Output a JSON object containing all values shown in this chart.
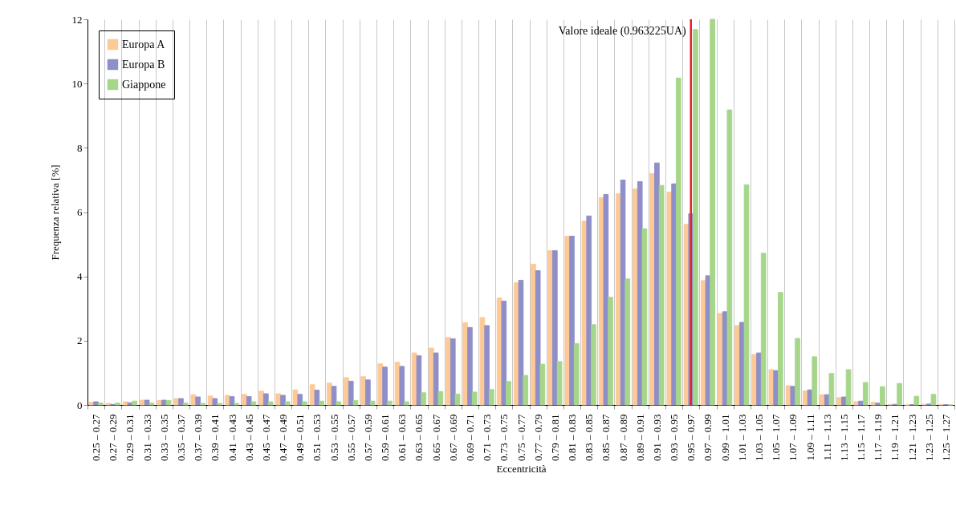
{
  "chart_data": {
    "type": "bar",
    "xlabel": "Eccentricità",
    "ylabel": "Frequenza relativa [%]",
    "categories": [
      "0.25 – 0.27",
      "0.27 – 0.29",
      "0.29 – 0.31",
      "0.31 – 0.33",
      "0.33 – 0.35",
      "0.35 – 0.37",
      "0.37 – 0.39",
      "0.39 – 0.41",
      "0.41 – 0.43",
      "0.43 – 0.45",
      "0.45 – 0.47",
      "0.47 – 0.49",
      "0.49 – 0.51",
      "0.51 – 0.53",
      "0.53 – 0.55",
      "0.55 – 0.57",
      "0.57 – 0.59",
      "0.59 – 0.61",
      "0.61 – 0.63",
      "0.63 – 0.65",
      "0.65 – 0.67",
      "0.67 – 0.69",
      "0.69 – 0.71",
      "0.71 – 0.73",
      "0.73 – 0.75",
      "0.75 – 0.77",
      "0.77 – 0.79",
      "0.79 – 0.81",
      "0.81 – 0.83",
      "0.83 – 0.85",
      "0.85 – 0.87",
      "0.87 – 0.89",
      "0.89 – 0.91",
      "0.91 – 0.93",
      "0.93 – 0.95",
      "0.95 – 0.97",
      "0.97 – 0.99",
      "0.99 – 1.01",
      "1.01 – 1.03",
      "1.03 – 1.05",
      "1.05 – 1.07",
      "1.07 – 1.09",
      "1.09 – 1.11",
      "1.11 – 1.13",
      "1.13 – 1.15",
      "1.15 – 1.17",
      "1.17 – 1.19",
      "1.19 – 1.21",
      "1.21 – 1.23",
      "1.23 – 1.25",
      "1.25 – 1.27"
    ],
    "series": [
      {
        "name": "Europa A",
        "color": "#fdc997",
        "values": [
          0.08,
          0.05,
          0.1,
          0.15,
          0.14,
          0.2,
          0.32,
          0.28,
          0.3,
          0.33,
          0.43,
          0.35,
          0.47,
          0.63,
          0.68,
          0.85,
          0.88,
          1.28,
          1.33,
          1.62,
          1.77,
          2.1,
          2.56,
          2.72,
          3.33,
          3.8,
          4.38,
          4.8,
          5.25,
          5.72,
          6.45,
          6.57,
          6.72,
          7.2,
          6.62,
          5.62,
          3.87,
          2.85,
          2.47,
          1.57,
          1.1,
          0.6,
          0.44,
          0.32,
          0.23,
          0.1,
          0.08,
          0.02,
          0,
          0.02,
          0.01
        ]
      },
      {
        "name": "Europa B",
        "color": "#8e8fc8",
        "values": [
          0.1,
          0.02,
          0.07,
          0.15,
          0.15,
          0.2,
          0.25,
          0.2,
          0.26,
          0.26,
          0.35,
          0.3,
          0.33,
          0.46,
          0.58,
          0.74,
          0.78,
          1.18,
          1.2,
          1.53,
          1.62,
          2.06,
          2.41,
          2.47,
          3.23,
          3.88,
          4.18,
          4.8,
          5.25,
          5.88,
          6.55,
          7.0,
          6.95,
          7.53,
          6.88,
          5.95,
          4.02,
          2.9,
          2.57,
          1.62,
          1.07,
          0.58,
          0.47,
          0.32,
          0.25,
          0.12,
          0.06,
          0.02,
          0.01,
          0.03,
          0.01
        ]
      },
      {
        "name": "Giappone",
        "color": "#a6d68a",
        "values": [
          0.06,
          0.06,
          0.12,
          0.06,
          0.14,
          0.06,
          0.05,
          0.05,
          0.05,
          0.1,
          0.1,
          0.1,
          0.1,
          0.12,
          0.1,
          0.14,
          0.12,
          0.12,
          0.1,
          0.38,
          0.42,
          0.34,
          0.4,
          0.48,
          0.73,
          0.92,
          1.27,
          1.35,
          1.91,
          2.5,
          3.35,
          3.92,
          5.48,
          6.83,
          10.17,
          11.68,
          12.0,
          9.18,
          6.85,
          4.72,
          3.5,
          2.07,
          1.5,
          0.98,
          1.1,
          0.7,
          0.57,
          0.67,
          0.27,
          0.33,
          0
        ]
      }
    ],
    "ylim": [
      0,
      12
    ],
    "yticks": [
      0,
      2,
      4,
      6,
      8,
      10,
      12
    ],
    "grid": "x",
    "legend": "top left",
    "ref_lines": [
      {
        "axis": "x",
        "value": "0.95 – 0.97",
        "label": "Valore ideale (0.963225UA)",
        "color": "#e8202a"
      }
    ]
  }
}
